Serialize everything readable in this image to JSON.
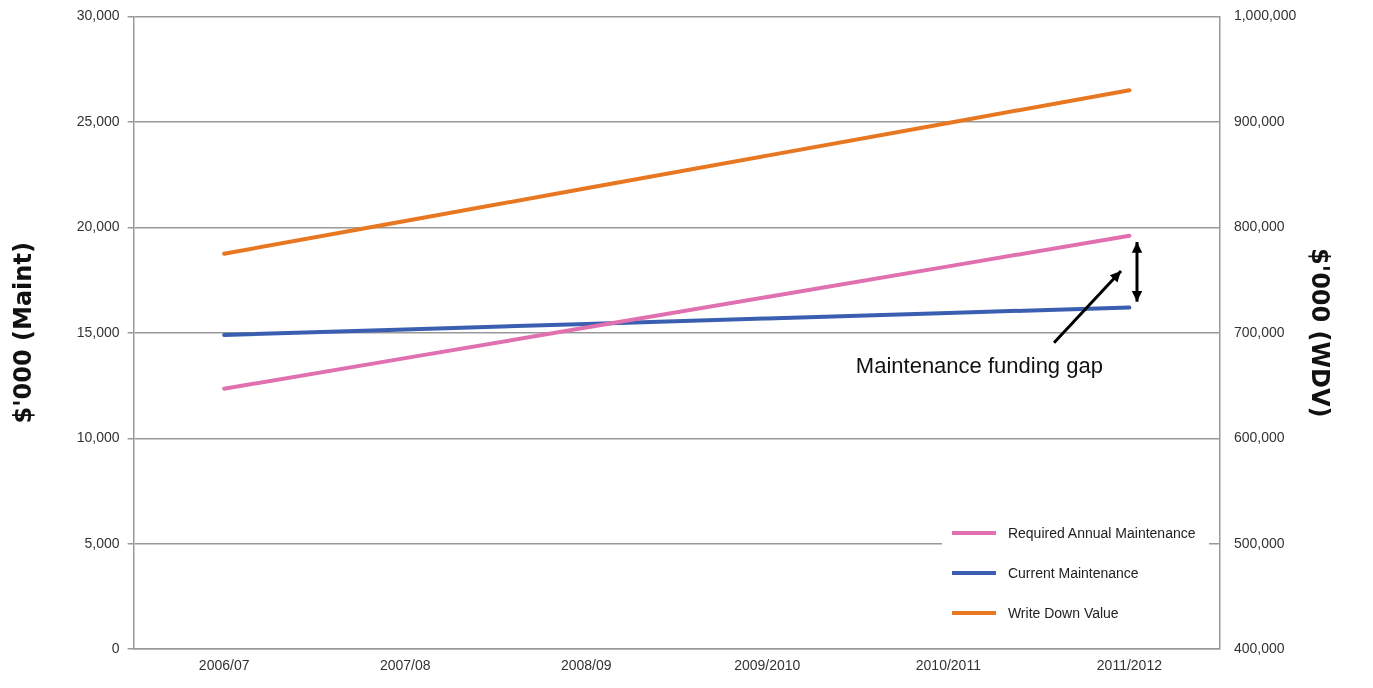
{
  "chart_data": {
    "type": "line",
    "categories": [
      "2006/07",
      "2007/08",
      "2008/09",
      "2009/2010",
      "2010/2011",
      "2011/2012"
    ],
    "ylabel": "$'000 (Maint)",
    "y2label": "$'000 (WDV)",
    "ylim": [
      0,
      30000
    ],
    "yticks": [
      {
        "value": 0,
        "label": "0"
      },
      {
        "value": 5000,
        "label": "5,000"
      },
      {
        "value": 10000,
        "label": "10,000"
      },
      {
        "value": 15000,
        "label": "15,000"
      },
      {
        "value": 20000,
        "label": "20,000"
      },
      {
        "value": 25000,
        "label": "25,000"
      },
      {
        "value": 30000,
        "label": "30,000"
      }
    ],
    "y2lim": [
      400000,
      1000000
    ],
    "y2ticks": [
      {
        "value": 400000,
        "label": "400,000"
      },
      {
        "value": 500000,
        "label": "500,000"
      },
      {
        "value": 600000,
        "label": "600,000"
      },
      {
        "value": 700000,
        "label": "700,000"
      },
      {
        "value": 800000,
        "label": "800,000"
      },
      {
        "value": 900000,
        "label": "900,000"
      },
      {
        "value": 1000000,
        "label": "1,000,000"
      }
    ],
    "series": [
      {
        "name": "Required Annual Maintenance",
        "color": "#e070b0",
        "values": [
          12350,
          13800,
          15250,
          16700,
          18150,
          19600
        ]
      },
      {
        "name": "Current Maintenance",
        "color": "#3a5fb0",
        "values": [
          14900,
          15160,
          15420,
          15680,
          15940,
          16200
        ]
      },
      {
        "name": "Write Down Value",
        "color": "#e87722",
        "axis": "y2",
        "values": [
          775000,
          806000,
          837000,
          868000,
          899000,
          930000
        ]
      }
    ],
    "annotations": [
      "Maintenance funding gap"
    ],
    "grid": "y",
    "legend": "bottom right",
    "marker": "none",
    "line_style": "solid"
  }
}
